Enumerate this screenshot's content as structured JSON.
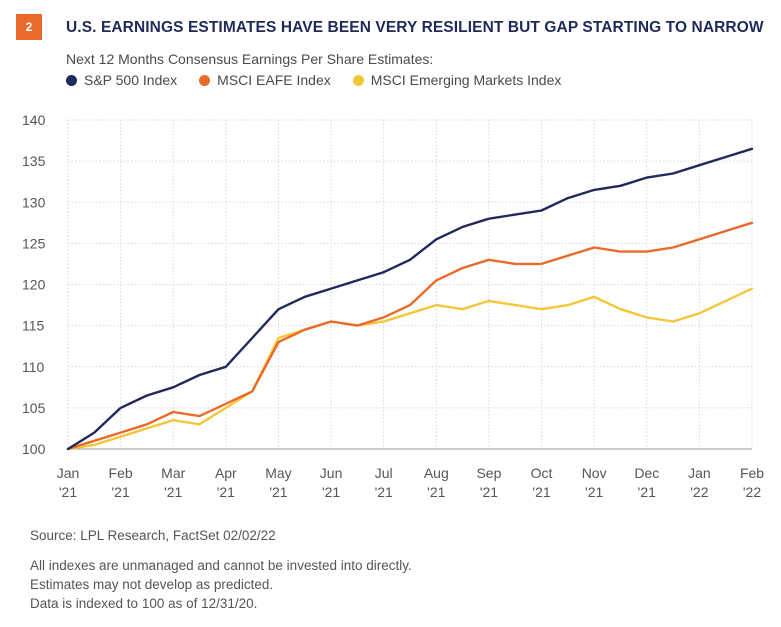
{
  "badge": "2",
  "title": "U.S. EARNINGS ESTIMATES HAVE BEEN VERY RESILIENT BUT GAP STARTING TO NARROW",
  "subtitle": "Next 12 Months Consensus Earnings Per Share Estimates:",
  "source": "Source: LPL Research, FactSet  02/02/22",
  "notes": [
    "All indexes are unmanaged and cannot be invested into directly.",
    "Estimates may not develop as predicted.",
    "Data is indexed to 100 as of 12/31/20."
  ],
  "chart_data": {
    "type": "line",
    "ylim": [
      100,
      140
    ],
    "yticks": [
      100,
      105,
      110,
      115,
      120,
      125,
      130,
      135,
      140
    ],
    "grid": true,
    "legend_position": "top-left",
    "x_tick_labels": [
      [
        "Jan",
        "'21"
      ],
      [
        "Feb",
        "'21"
      ],
      [
        "Mar",
        "'21"
      ],
      [
        "Apr",
        "'21"
      ],
      [
        "May",
        "'21"
      ],
      [
        "Jun",
        "'21"
      ],
      [
        "Jul",
        "'21"
      ],
      [
        "Aug",
        "'21"
      ],
      [
        "Sep",
        "'21"
      ],
      [
        "Oct",
        "'21"
      ],
      [
        "Nov",
        "'21"
      ],
      [
        "Dec",
        "'21"
      ],
      [
        "Jan",
        "'22"
      ],
      [
        "Feb",
        "'22"
      ]
    ],
    "x": [
      "Jan '21",
      "Jan '21",
      "Feb '21",
      "Feb '21",
      "Mar '21",
      "Mar '21",
      "Apr '21",
      "Apr '21",
      "May '21",
      "May '21",
      "Jun '21",
      "Jun '21",
      "Jul '21",
      "Jul '21",
      "Aug '21",
      "Aug '21",
      "Sep '21",
      "Sep '21",
      "Oct '21",
      "Oct '21",
      "Nov '21",
      "Nov '21",
      "Dec '21",
      "Dec '21",
      "Jan '22",
      "Jan '22",
      "Feb '22"
    ],
    "series": [
      {
        "name": "S&P 500 Index",
        "color": "#1f2a5a",
        "values": [
          100,
          102,
          105,
          106.5,
          107.5,
          109,
          110,
          113.5,
          117,
          118.5,
          119.5,
          120.5,
          121.5,
          123,
          125.5,
          127,
          128,
          128.5,
          129,
          130.5,
          131.5,
          132,
          133,
          133.5,
          134.5,
          135.5,
          136.5
        ]
      },
      {
        "name": "MSCI EAFE Index",
        "color": "#ea6a2a",
        "values": [
          100,
          101,
          102,
          103,
          104.5,
          104,
          105.5,
          107,
          113,
          114.5,
          115.5,
          115,
          116,
          117.5,
          120.5,
          122,
          123,
          122.5,
          122.5,
          123.5,
          124.5,
          124,
          124,
          124.5,
          125.5,
          126.5,
          127.5
        ]
      },
      {
        "name": "MSCI Emerging Markets Index",
        "color": "#f4c63a",
        "values": [
          100,
          100.5,
          101.5,
          102.5,
          103.5,
          103,
          105,
          107,
          113.5,
          114.5,
          115.5,
          115,
          115.5,
          116.5,
          117.5,
          117,
          118,
          117.5,
          117,
          117.5,
          118.5,
          117,
          116,
          115.5,
          116.5,
          118,
          119.5
        ]
      }
    ]
  }
}
